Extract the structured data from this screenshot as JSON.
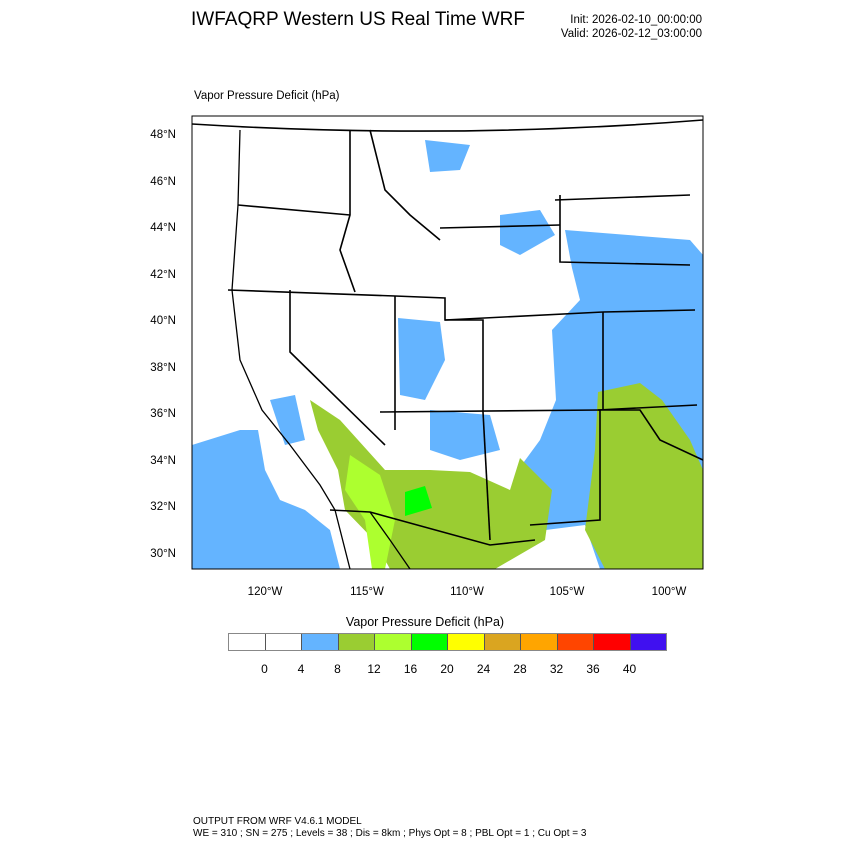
{
  "header": {
    "title": "IWFAQRP Western US Real Time WRF",
    "init": "Init: 2026-02-10_00:00:00",
    "valid": "Valid: 2026-02-12_03:00:00"
  },
  "map": {
    "field_title": "Vapor Pressure Deficit   (hPa)",
    "lat_labels": [
      "48°N",
      "46°N",
      "44°N",
      "42°N",
      "40°N",
      "38°N",
      "36°N",
      "34°N",
      "32°N",
      "30°N"
    ],
    "lon_labels": [
      "120°W",
      "115°W",
      "110°W",
      "105°W",
      "100°W"
    ],
    "region": "Western United States",
    "colors": {
      "vpd_4_8": "#64b4ff",
      "vpd_8_12": "#9acd32",
      "vpd_12_16": "#adff2f",
      "vpd_16_20": "#00ff00",
      "borders": "#000000"
    }
  },
  "colorbar": {
    "title": "Vapor Pressure Deficit  (hPa)",
    "labels": [
      "0",
      "4",
      "8",
      "12",
      "16",
      "20",
      "24",
      "28",
      "32",
      "36",
      "40"
    ],
    "colors": [
      "#ffffff",
      "#ffffff",
      "#64b4ff",
      "#9acd32",
      "#adff2f",
      "#00ff00",
      "#ffff00",
      "#daa520",
      "#ffa500",
      "#ff4500",
      "#ff0000",
      "#4010f0"
    ]
  },
  "footer": {
    "line1": "OUTPUT FROM WRF V4.6.1 MODEL",
    "line2": "WE = 310 ; SN = 275 ; Levels = 38 ; Dis = 8km ; Phys Opt = 8 ; PBL Opt = 1 ; Cu Opt = 3"
  }
}
